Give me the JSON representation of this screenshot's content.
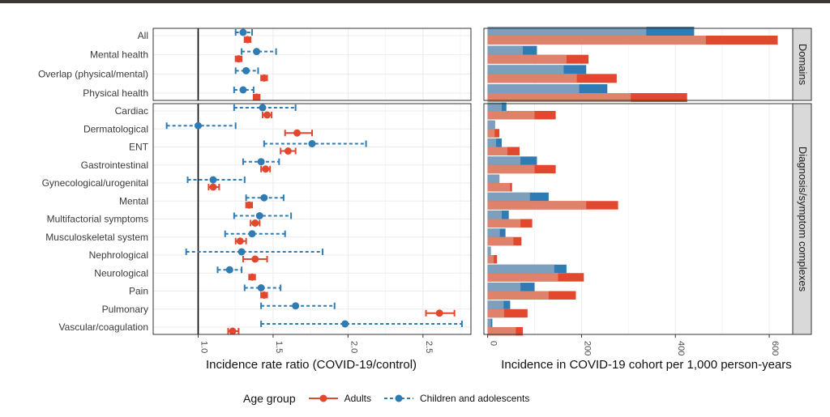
{
  "chart_data": [
    {
      "type": "forest",
      "xlabel": "Incidence rate ratio (COVID-19/control)",
      "xlim": [
        0.7,
        2.82
      ],
      "xticks": [
        "1.0",
        "1.5",
        "2.0",
        "2.5"
      ],
      "reference_line": 1.0,
      "panels": [
        {
          "name": "Domains",
          "categories": [
            "All",
            "Mental health",
            "Overlap (physical/mental)",
            "Physical health"
          ],
          "series": [
            {
              "name": "Adults",
              "est": [
                1.33,
                1.27,
                1.44,
                1.39
              ],
              "lo": [
                1.31,
                1.25,
                1.42,
                1.37
              ],
              "hi": [
                1.35,
                1.29,
                1.46,
                1.41
              ]
            },
            {
              "name": "Children and adolescents",
              "est": [
                1.3,
                1.39,
                1.32,
                1.3
              ],
              "lo": [
                1.25,
                1.29,
                1.25,
                1.24
              ],
              "hi": [
                1.36,
                1.52,
                1.4,
                1.37
              ]
            }
          ]
        },
        {
          "name": "Diagnosis/symptom complexes",
          "categories": [
            "Cardiac",
            "Dermatological",
            "ENT",
            "Gastrointestinal",
            "Gynecological/urogenital",
            "Mental",
            "Multifactorial symptoms",
            "Musculoskeletal system",
            "Nephrological",
            "Neurological",
            "Pain",
            "Pulmonary",
            "Vascular/coagulation"
          ],
          "series": [
            {
              "name": "Adults",
              "est": [
                1.46,
                1.66,
                1.6,
                1.45,
                1.1,
                1.34,
                1.38,
                1.28,
                1.38,
                1.36,
                1.44,
                2.61,
                1.23
              ],
              "lo": [
                1.43,
                1.58,
                1.55,
                1.42,
                1.07,
                1.32,
                1.35,
                1.25,
                1.3,
                1.34,
                1.42,
                2.52,
                1.2
              ],
              "hi": [
                1.49,
                1.76,
                1.65,
                1.48,
                1.14,
                1.36,
                1.41,
                1.32,
                1.46,
                1.38,
                1.46,
                2.71,
                1.27
              ]
            },
            {
              "name": "Children and adolescents",
              "est": [
                1.43,
                1.0,
                1.76,
                1.42,
                1.1,
                1.44,
                1.41,
                1.36,
                1.29,
                1.21,
                1.42,
                1.65,
                1.98
              ],
              "lo": [
                1.24,
                0.79,
                1.44,
                1.3,
                0.93,
                1.32,
                1.24,
                1.18,
                0.92,
                1.13,
                1.31,
                1.42,
                1.42
              ],
              "hi": [
                1.65,
                1.25,
                2.12,
                1.54,
                1.31,
                1.57,
                1.62,
                1.58,
                1.83,
                1.29,
                1.55,
                1.91,
                2.76
              ]
            }
          ]
        }
      ]
    },
    {
      "type": "bar",
      "orientation": "horizontal",
      "xlabel": "Incidence in COVID-19 cohort per 1,000 person-years",
      "xlim": [
        -8,
        650
      ],
      "xticks": [
        "0",
        "200",
        "400",
        "600"
      ],
      "panels": [
        {
          "name": "Domains",
          "categories": [
            "All",
            "Mental health",
            "Overlap (physical/mental)",
            "Physical health"
          ],
          "series": [
            {
              "name": "Adults",
              "control": [
                465,
                168,
                190,
                305
              ],
              "covid": [
                618,
                215,
                275,
                425
              ]
            },
            {
              "name": "Children and adolescents",
              "control": [
                338,
                75,
                162,
                195
              ],
              "covid": [
                440,
                105,
                210,
                255
              ]
            }
          ]
        },
        {
          "name": "Diagnosis/symptom complexes",
          "categories": [
            "Cardiac",
            "Dermatological",
            "ENT",
            "Gastrointestinal",
            "Gynecological/urogenital",
            "Mental",
            "Multifactorial symptoms",
            "Musculoskeletal system",
            "Nephrological",
            "Neurological",
            "Pain",
            "Pulmonary",
            "Vascular/coagulation"
          ],
          "series": [
            {
              "name": "Adults",
              "control": [
                100,
                15,
                42,
                100,
                48,
                210,
                70,
                55,
                13,
                150,
                130,
                35,
                60
              ],
              "covid": [
                145,
                25,
                68,
                145,
                52,
                278,
                95,
                72,
                20,
                205,
                188,
                85,
                75
              ]
            },
            {
              "name": "Children and adolescents",
              "control": [
                30,
                16,
                18,
                70,
                25,
                90,
                30,
                26,
                7,
                142,
                70,
                34,
                7
              ],
              "covid": [
                40,
                14,
                30,
                105,
                25,
                130,
                45,
                38,
                6,
                168,
                100,
                48,
                10
              ]
            }
          ]
        }
      ]
    }
  ],
  "legend": {
    "title": "Age group",
    "items": [
      {
        "label": "Adults",
        "color": "#e2482e",
        "style": "solid"
      },
      {
        "label": "Children and adolescents",
        "color": "#2f7bb3",
        "style": "dashed"
      }
    ]
  },
  "colors": {
    "adults": "#e2482e",
    "adults_light": "#de826c",
    "children": "#2f7bb3",
    "children_light": "#7b9fbd",
    "strip": "#d9d9d9",
    "grid": "#ebebeb"
  }
}
